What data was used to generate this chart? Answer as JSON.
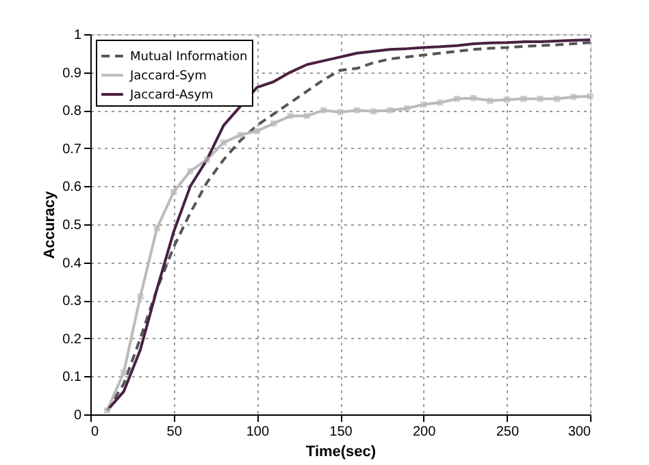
{
  "chart_data": {
    "type": "line",
    "xlabel": "Time(sec)",
    "ylabel": "Accuracy",
    "x": [
      10,
      20,
      30,
      40,
      50,
      60,
      70,
      80,
      90,
      100,
      110,
      120,
      130,
      140,
      150,
      160,
      170,
      180,
      190,
      200,
      210,
      220,
      230,
      240,
      250,
      260,
      270,
      280,
      290,
      300
    ],
    "series": [
      {
        "name": "Mutual Information",
        "color": "#555555",
        "line_style": "dashed",
        "marker": "none",
        "values": [
          0.01,
          0.08,
          0.2,
          0.33,
          0.44,
          0.53,
          0.61,
          0.67,
          0.72,
          0.76,
          0.79,
          0.82,
          0.85,
          0.88,
          0.905,
          0.91,
          0.925,
          0.935,
          0.94,
          0.945,
          0.95,
          0.955,
          0.96,
          0.963,
          0.965,
          0.968,
          0.97,
          0.972,
          0.975,
          0.978
        ]
      },
      {
        "name": "Jaccard-Sym",
        "color": "#bbbbbb",
        "line_style": "solid",
        "marker": "square",
        "values": [
          0.01,
          0.11,
          0.31,
          0.49,
          0.585,
          0.64,
          0.67,
          0.715,
          0.735,
          0.745,
          0.765,
          0.785,
          0.785,
          0.8,
          0.795,
          0.8,
          0.797,
          0.8,
          0.805,
          0.815,
          0.82,
          0.83,
          0.832,
          0.825,
          0.828,
          0.83,
          0.83,
          0.83,
          0.835,
          0.837
        ]
      },
      {
        "name": "Jaccard-Asym",
        "color": "#4a2040",
        "line_style": "solid",
        "marker": "none",
        "values": [
          0.01,
          0.06,
          0.17,
          0.33,
          0.48,
          0.6,
          0.67,
          0.76,
          0.81,
          0.86,
          0.875,
          0.9,
          0.92,
          0.93,
          0.94,
          0.95,
          0.955,
          0.96,
          0.962,
          0.965,
          0.967,
          0.97,
          0.975,
          0.977,
          0.978,
          0.98,
          0.98,
          0.982,
          0.984,
          0.985
        ]
      }
    ],
    "xlim": [
      0,
      300
    ],
    "xticks": [
      0,
      50,
      100,
      150,
      200,
      250,
      300
    ],
    "ylim": [
      0,
      1
    ],
    "yticks": [
      0,
      0.1,
      0.2,
      0.3,
      0.4,
      0.5,
      0.6,
      0.7,
      0.8,
      0.9,
      1
    ],
    "grid": true,
    "legend": "top left"
  }
}
